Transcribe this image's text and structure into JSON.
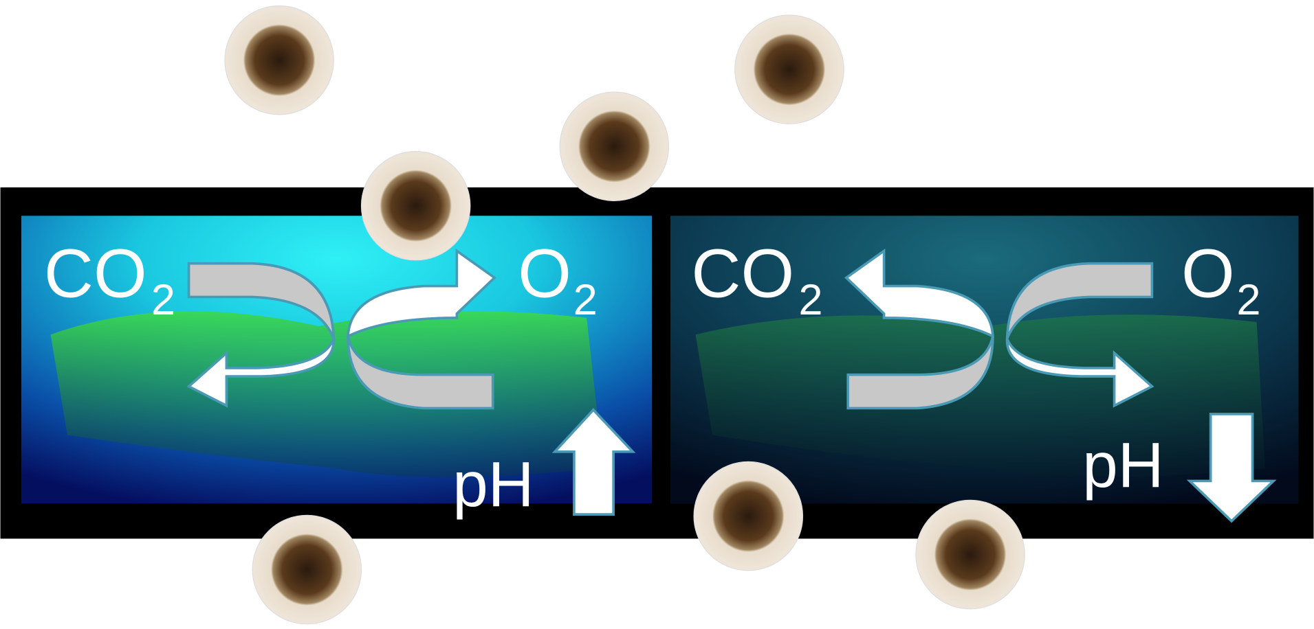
{
  "panels": [
    {
      "gas_in": "CO",
      "gas_in_subscript": "2",
      "gas_out": "O",
      "gas_out_subscript": "2",
      "ph_label": "pH"
    },
    {
      "gas_in": "CO",
      "gas_in_subscript": "2",
      "gas_out": "O",
      "gas_out_subscript": "2",
      "ph_label": "pH"
    }
  ]
}
